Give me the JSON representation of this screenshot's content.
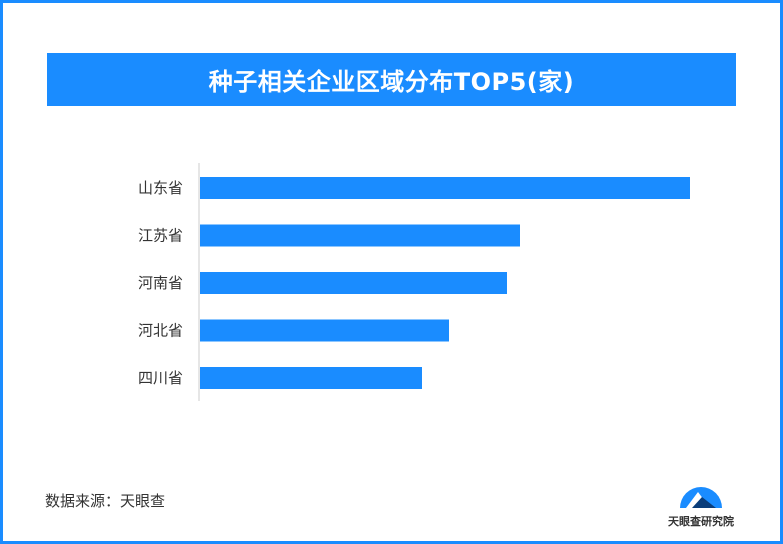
{
  "title": "种子相关企业区域分布TOP5(家)",
  "source": "数据来源：天眼查",
  "brand": {
    "name": "天眼查研究院",
    "icon": "tianyancha-logo-icon",
    "colors": {
      "primary": "#1a8cff",
      "dark": "#0a3d7a"
    }
  },
  "colors": {
    "accent": "#1a8cff",
    "axis": "#cccccc",
    "label": "#333333"
  },
  "chart_data": {
    "type": "bar",
    "orientation": "horizontal",
    "categories": [
      "山东省",
      "江苏省",
      "河南省",
      "河北省",
      "四川省"
    ],
    "values": [
      490,
      320,
      307,
      249,
      222
    ],
    "xlim": [
      0,
      500
    ],
    "grid": false,
    "legend": "none",
    "data_labels": false
  }
}
